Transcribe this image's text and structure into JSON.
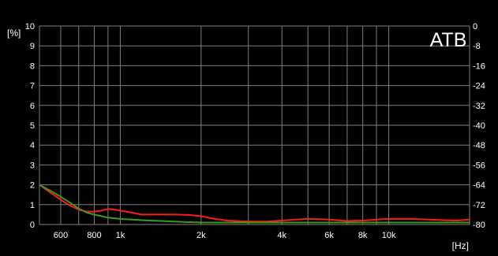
{
  "chart_data": {
    "type": "line",
    "title": "",
    "watermark": "ATB",
    "xlabel": "[Hz]",
    "ylabel_left": "[%]",
    "ylabel_right": "",
    "x_scale": "log",
    "xlim": [
      500,
      20000
    ],
    "ylim_left": [
      0,
      10
    ],
    "ylim_right": [
      -80,
      0
    ],
    "grid": true,
    "legend": "none",
    "x_ticks": [
      {
        "value": 600,
        "label": "600"
      },
      {
        "value": 800,
        "label": "800"
      },
      {
        "value": 1000,
        "label": "1k"
      },
      {
        "value": 2000,
        "label": "2k"
      },
      {
        "value": 4000,
        "label": "4k"
      },
      {
        "value": 6000,
        "label": "6k"
      },
      {
        "value": 8000,
        "label": "8k"
      },
      {
        "value": 10000,
        "label": "10k"
      }
    ],
    "x_gridlines": [
      500,
      600,
      700,
      800,
      900,
      1000,
      2000,
      3000,
      4000,
      5000,
      6000,
      7000,
      8000,
      9000,
      10000,
      20000
    ],
    "y_ticks_left": [
      {
        "value": 0,
        "label": "0"
      },
      {
        "value": 1,
        "label": "1"
      },
      {
        "value": 2,
        "label": "2"
      },
      {
        "value": 3,
        "label": "3"
      },
      {
        "value": 4,
        "label": "4"
      },
      {
        "value": 5,
        "label": "5"
      },
      {
        "value": 6,
        "label": "6"
      },
      {
        "value": 7,
        "label": "7"
      },
      {
        "value": 8,
        "label": "8"
      },
      {
        "value": 9,
        "label": "9"
      },
      {
        "value": 10,
        "label": "10"
      }
    ],
    "y_ticks_right": [
      {
        "value": 0,
        "label": "0"
      },
      {
        "value": -8,
        "label": "-8"
      },
      {
        "value": -16,
        "label": "-16"
      },
      {
        "value": -24,
        "label": "-24"
      },
      {
        "value": -32,
        "label": "-32"
      },
      {
        "value": -40,
        "label": "-40"
      },
      {
        "value": -48,
        "label": "-48"
      },
      {
        "value": -56,
        "label": "-56"
      },
      {
        "value": -64,
        "label": "-64"
      },
      {
        "value": -72,
        "label": "-72"
      },
      {
        "value": -80,
        "label": "-80"
      }
    ],
    "colors": {
      "background": "#000000",
      "grid": "#808080",
      "text": "#ffffff",
      "series_red": "#ff1a1a",
      "series_green": "#3c9a1e"
    },
    "series": [
      {
        "color": "#ff1a1a",
        "x": [
          500,
          550,
          600,
          650,
          700,
          750,
          800,
          850,
          900,
          950,
          1000,
          1100,
          1200,
          1400,
          1600,
          1800,
          2000,
          2200,
          2500,
          3000,
          3500,
          4000,
          4500,
          5000,
          6000,
          7000,
          8000,
          9000,
          10000,
          12000,
          14000,
          16000,
          18000,
          20000
        ],
        "values": [
          2.0,
          1.6,
          1.25,
          0.95,
          0.75,
          0.65,
          0.65,
          0.7,
          0.78,
          0.75,
          0.7,
          0.6,
          0.5,
          0.5,
          0.5,
          0.48,
          0.42,
          0.3,
          0.2,
          0.15,
          0.15,
          0.2,
          0.25,
          0.28,
          0.25,
          0.18,
          0.2,
          0.25,
          0.28,
          0.28,
          0.25,
          0.22,
          0.2,
          0.25
        ]
      },
      {
        "color": "#3c9a1e",
        "x": [
          500,
          550,
          600,
          650,
          700,
          750,
          800,
          850,
          900,
          1000,
          1100,
          1200,
          1400,
          1600,
          1800,
          2000,
          2200,
          2500,
          3000,
          3500,
          4000,
          4500,
          5000,
          6000,
          7000,
          8000,
          9000,
          10000,
          12000,
          14000,
          16000,
          18000,
          20000
        ],
        "values": [
          2.0,
          1.7,
          1.4,
          1.1,
          0.8,
          0.6,
          0.5,
          0.42,
          0.35,
          0.28,
          0.25,
          0.22,
          0.18,
          0.15,
          0.12,
          0.1,
          0.1,
          0.1,
          0.1,
          0.1,
          0.1,
          0.1,
          0.1,
          0.1,
          0.1,
          0.1,
          0.1,
          0.1,
          0.1,
          0.1,
          0.1,
          0.1,
          0.1
        ]
      }
    ]
  }
}
